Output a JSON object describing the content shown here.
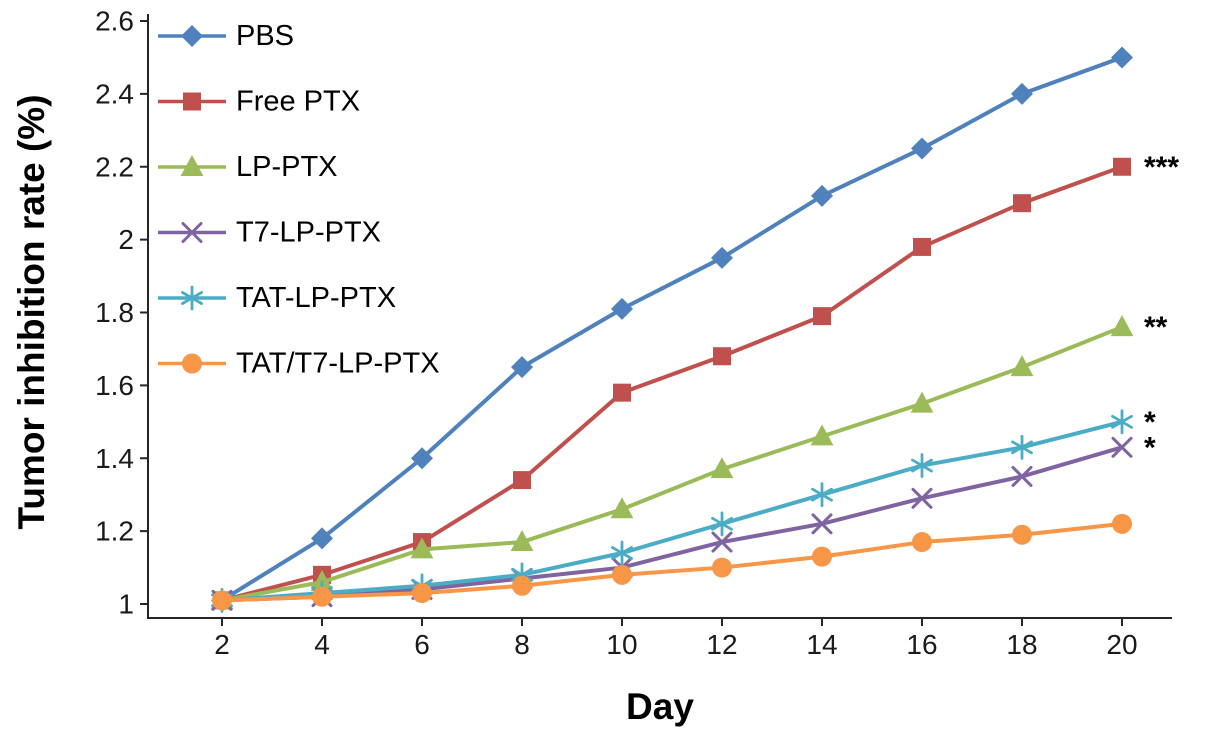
{
  "page": {
    "background": "#ffffff"
  },
  "chart_data": {
    "type": "line",
    "title": "",
    "xlabel": "Day",
    "ylabel": "Tumor inhibition rate (%)",
    "x": [
      2,
      4,
      6,
      8,
      10,
      12,
      14,
      16,
      18,
      20
    ],
    "xlim": [
      1,
      21
    ],
    "ylim": [
      1,
      2.6
    ],
    "xtick_labels": [
      "2",
      "4",
      "6",
      "8",
      "10",
      "12",
      "14",
      "16",
      "18",
      "20"
    ],
    "ytick_labels": [
      "1",
      "1.2",
      "1.4",
      "1.6",
      "1.8",
      "2",
      "2.2",
      "2.4",
      "2.6"
    ],
    "grid": false,
    "legend_position": "top-left",
    "axis_color": "#262626",
    "text_color": "#1a1a1a",
    "annotation_color": "#000000",
    "series": [
      {
        "name": "PBS",
        "color": "#4f81bd",
        "marker": "diamond",
        "annotation": "",
        "values": [
          1.01,
          1.18,
          1.4,
          1.65,
          1.81,
          1.95,
          2.12,
          2.25,
          2.4,
          2.5
        ]
      },
      {
        "name": "Free PTX",
        "color": "#c0504d",
        "marker": "square",
        "annotation": "***",
        "values": [
          1.01,
          1.08,
          1.17,
          1.34,
          1.58,
          1.68,
          1.79,
          1.98,
          2.1,
          2.2
        ]
      },
      {
        "name": "LP-PTX",
        "color": "#9bbb59",
        "marker": "triangle",
        "annotation": "**",
        "values": [
          1.01,
          1.06,
          1.15,
          1.17,
          1.26,
          1.37,
          1.46,
          1.55,
          1.65,
          1.76
        ]
      },
      {
        "name": "T7-LP-PTX",
        "color": "#8064a2",
        "marker": "x",
        "annotation": "*",
        "values": [
          1.01,
          1.02,
          1.04,
          1.07,
          1.1,
          1.17,
          1.22,
          1.29,
          1.35,
          1.43
        ]
      },
      {
        "name": "TAT-LP-PTX",
        "color": "#4bacc6",
        "marker": "asterisk",
        "annotation": "*",
        "values": [
          1.01,
          1.03,
          1.05,
          1.08,
          1.14,
          1.22,
          1.3,
          1.38,
          1.43,
          1.5
        ]
      },
      {
        "name": "TAT/T7-LP-PTX",
        "color": "#f79646",
        "marker": "circle",
        "annotation": "",
        "values": [
          1.01,
          1.02,
          1.03,
          1.05,
          1.08,
          1.1,
          1.13,
          1.17,
          1.19,
          1.22
        ]
      }
    ]
  }
}
